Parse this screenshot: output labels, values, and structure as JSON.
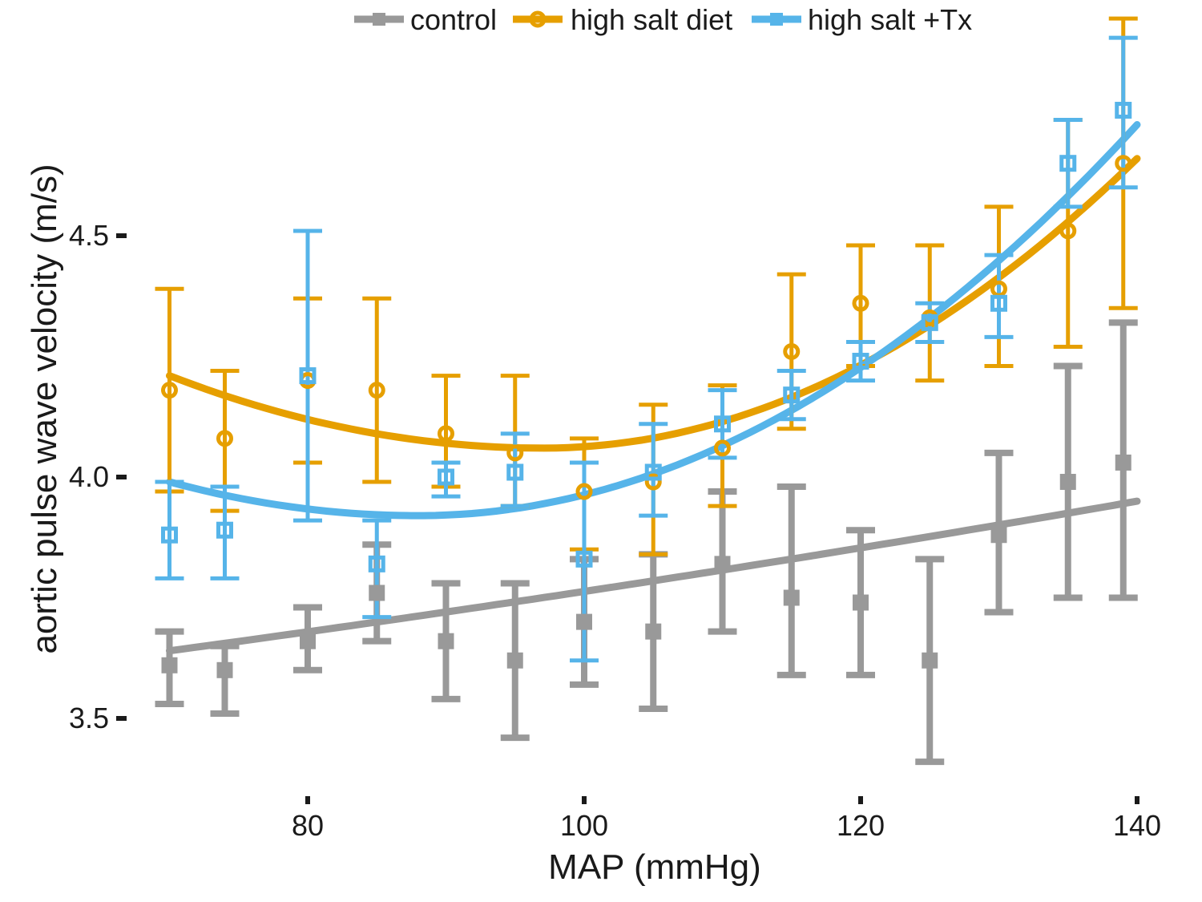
{
  "chart_data": {
    "type": "line",
    "xlabel": "MAP (mmHg)",
    "ylabel": "aortic pulse wave velocity (m/s)",
    "xlim": [
      63,
      142
    ],
    "ylim": [
      3.37,
      4.87
    ],
    "xticks": [
      80,
      100,
      120,
      140
    ],
    "yticks": [
      3.5,
      4.0,
      4.5
    ],
    "xtick_labels": [
      "80",
      "100",
      "120",
      "140"
    ],
    "ytick_labels": [
      "3.5",
      "4.0",
      "4.5"
    ],
    "legend": {
      "position": "top"
    },
    "grid": false,
    "series": [
      {
        "name": "control",
        "color": "#999999",
        "marker": "square",
        "points": [
          {
            "x": 70,
            "y": 3.61,
            "lo": 3.53,
            "hi": 3.68
          },
          {
            "x": 74,
            "y": 3.6,
            "lo": 3.51,
            "hi": 3.65
          },
          {
            "x": 80,
            "y": 3.66,
            "lo": 3.6,
            "hi": 3.73
          },
          {
            "x": 85,
            "y": 3.76,
            "lo": 3.66,
            "hi": 3.86
          },
          {
            "x": 90,
            "y": 3.66,
            "lo": 3.54,
            "hi": 3.78
          },
          {
            "x": 95,
            "y": 3.62,
            "lo": 3.46,
            "hi": 3.78
          },
          {
            "x": 100,
            "y": 3.7,
            "lo": 3.57,
            "hi": 3.83
          },
          {
            "x": 105,
            "y": 3.68,
            "lo": 3.52,
            "hi": 3.84
          },
          {
            "x": 110,
            "y": 3.82,
            "lo": 3.68,
            "hi": 3.97
          },
          {
            "x": 115,
            "y": 3.75,
            "lo": 3.59,
            "hi": 3.98
          },
          {
            "x": 120,
            "y": 3.74,
            "lo": 3.59,
            "hi": 3.89
          },
          {
            "x": 125,
            "y": 3.62,
            "lo": 3.41,
            "hi": 3.83
          },
          {
            "x": 130,
            "y": 3.88,
            "lo": 3.72,
            "hi": 4.05
          },
          {
            "x": 135,
            "y": 3.99,
            "lo": 3.75,
            "hi": 4.23
          },
          {
            "x": 139,
            "y": 4.03,
            "lo": 3.75,
            "hi": 4.32
          }
        ],
        "fit": {
          "x0": 70,
          "x1": 140,
          "y_start": 3.64,
          "y_end": 3.95,
          "curvature": 0.04
        }
      },
      {
        "name": "high salt diet",
        "color": "#E69F00",
        "marker": "circle",
        "points": [
          {
            "x": 70,
            "y": 4.18,
            "lo": 3.97,
            "hi": 4.39
          },
          {
            "x": 74,
            "y": 4.08,
            "lo": 3.93,
            "hi": 4.22
          },
          {
            "x": 80,
            "y": 4.2,
            "lo": 4.03,
            "hi": 4.37
          },
          {
            "x": 85,
            "y": 4.18,
            "lo": 3.99,
            "hi": 4.37
          },
          {
            "x": 90,
            "y": 4.09,
            "lo": 3.98,
            "hi": 4.21
          },
          {
            "x": 95,
            "y": 4.05,
            "lo": 3.94,
            "hi": 4.21
          },
          {
            "x": 100,
            "y": 3.97,
            "lo": 3.85,
            "hi": 4.08
          },
          {
            "x": 105,
            "y": 3.99,
            "lo": 3.84,
            "hi": 4.15
          },
          {
            "x": 110,
            "y": 4.06,
            "lo": 3.94,
            "hi": 4.19
          },
          {
            "x": 115,
            "y": 4.26,
            "lo": 4.1,
            "hi": 4.42
          },
          {
            "x": 120,
            "y": 4.36,
            "lo": 4.23,
            "hi": 4.48
          },
          {
            "x": 125,
            "y": 4.33,
            "lo": 4.2,
            "hi": 4.48
          },
          {
            "x": 130,
            "y": 4.39,
            "lo": 4.23,
            "hi": 4.56
          },
          {
            "x": 135,
            "y": 4.51,
            "lo": 4.27,
            "hi": 4.74
          },
          {
            "x": 139,
            "y": 4.65,
            "lo": 4.35,
            "hi": 4.95
          }
        ],
        "fit": {
          "vertex_x": 97,
          "vertex_y": 4.06,
          "x0": 70,
          "y0": 4.21,
          "x1": 140,
          "y1": 4.66
        }
      },
      {
        "name": "high salt +Tx",
        "color": "#56B4E9",
        "marker": "square",
        "points": [
          {
            "x": 70,
            "y": 3.88,
            "lo": 3.79,
            "hi": 3.99
          },
          {
            "x": 74,
            "y": 3.89,
            "lo": 3.79,
            "hi": 3.98
          },
          {
            "x": 80,
            "y": 4.21,
            "lo": 3.91,
            "hi": 4.51
          },
          {
            "x": 85,
            "y": 3.82,
            "lo": 3.71,
            "hi": 3.91
          },
          {
            "x": 90,
            "y": 4.0,
            "lo": 3.96,
            "hi": 4.03
          },
          {
            "x": 95,
            "y": 4.01,
            "lo": 3.94,
            "hi": 4.09
          },
          {
            "x": 100,
            "y": 3.83,
            "lo": 3.62,
            "hi": 4.03
          },
          {
            "x": 105,
            "y": 4.01,
            "lo": 3.92,
            "hi": 4.11
          },
          {
            "x": 110,
            "y": 4.11,
            "lo": 4.04,
            "hi": 4.18
          },
          {
            "x": 115,
            "y": 4.17,
            "lo": 4.12,
            "hi": 4.22
          },
          {
            "x": 120,
            "y": 4.24,
            "lo": 4.2,
            "hi": 4.28
          },
          {
            "x": 125,
            "y": 4.32,
            "lo": 4.28,
            "hi": 4.36
          },
          {
            "x": 130,
            "y": 4.36,
            "lo": 4.29,
            "hi": 4.46
          },
          {
            "x": 135,
            "y": 4.65,
            "lo": 4.56,
            "hi": 4.74
          },
          {
            "x": 139,
            "y": 4.76,
            "lo": 4.6,
            "hi": 4.91
          }
        ],
        "fit": {
          "vertex_x": 88,
          "vertex_y": 3.92,
          "x0": 70,
          "y0": 3.99,
          "x1": 140,
          "y1": 4.73
        }
      }
    ]
  }
}
